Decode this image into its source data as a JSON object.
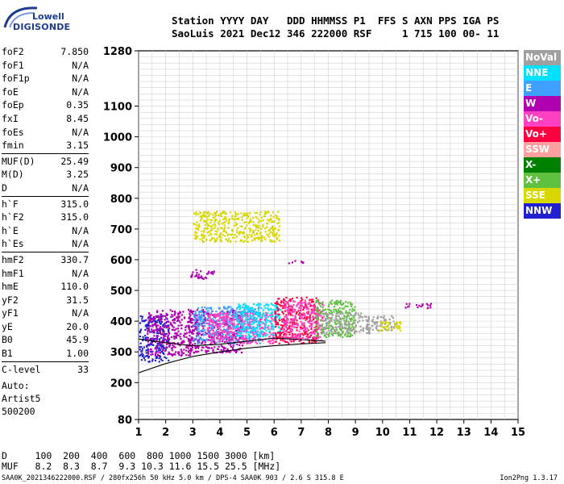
{
  "logo": {
    "top": "Lowell",
    "bottom": "DIGISONDE"
  },
  "header": {
    "line1": "Station YYYY DAY   DDD HHMMSS P1  FFS S AXN PPS IGA PS",
    "line2": "SaoLuis 2021 Dec12 346 222000 RSF     1 715 100 00- 11"
  },
  "params": [
    {
      "name": "foF2",
      "value": "7.850"
    },
    {
      "name": "foF1",
      "value": "N/A"
    },
    {
      "name": "foF1p",
      "value": "N/A"
    },
    {
      "name": "foE",
      "value": "N/A"
    },
    {
      "name": "foEp",
      "value": "0.35"
    },
    {
      "name": "fxI",
      "value": "8.45"
    },
    {
      "name": "foEs",
      "value": "N/A"
    },
    {
      "name": "fmin",
      "value": "3.15"
    },
    {
      "name": "MUF(D)",
      "value": "25.49"
    },
    {
      "name": "M(D)",
      "value": "3.25"
    },
    {
      "name": "D",
      "value": "N/A"
    },
    {
      "name": "h`F",
      "value": "315.0"
    },
    {
      "name": "h`F2",
      "value": "315.0"
    },
    {
      "name": "h`E",
      "value": "N/A"
    },
    {
      "name": "h`Es",
      "value": "N/A"
    },
    {
      "name": "hmF2",
      "value": "330.7"
    },
    {
      "name": "hmF1",
      "value": "N/A"
    },
    {
      "name": "hmE",
      "value": "110.0"
    },
    {
      "name": "yF2",
      "value": "31.5"
    },
    {
      "name": "yF1",
      "value": "N/A"
    },
    {
      "name": "yE",
      "value": "20.0"
    },
    {
      "name": "B0",
      "value": "45.9"
    },
    {
      "name": "B1",
      "value": "1.00"
    },
    {
      "name": "C-level",
      "value": "33"
    }
  ],
  "auto": {
    "line1": "Auto:",
    "line2": "Artist5",
    "line3": "500200"
  },
  "legend": [
    {
      "label": "NoVal",
      "color": "#a0a0a0"
    },
    {
      "label": "NNE",
      "color": "#00e0ff"
    },
    {
      "label": "E",
      "color": "#40a0ff"
    },
    {
      "label": "W",
      "color": "#b000b0"
    },
    {
      "label": "Vo-",
      "color": "#ff40c0"
    },
    {
      "label": "Vo+",
      "color": "#ff0040"
    },
    {
      "label": "SSW",
      "color": "#ffa0a0"
    },
    {
      "label": "X-",
      "color": "#008000"
    },
    {
      "label": "X+",
      "color": "#60c040"
    },
    {
      "label": "SSE",
      "color": "#d8d800"
    },
    {
      "label": "NNW",
      "color": "#2020d0"
    }
  ],
  "bottom": {
    "line1": "D     100  200  400  600  800 1000 1500 3000 [km]",
    "line2": "MUF   8.2  8.3  8.7  9.3 10.3 11.6 15.5 25.5 [MHz]"
  },
  "footer": {
    "left": "SAA0K_2021346222000.RSF / 280fx256h 50 kHz 5.0 km / DPS-4 SAA0K 903 / 2.6 S 315.8 E",
    "right": "Ion2Png 1.3.17"
  },
  "chart_data": {
    "type": "scatter",
    "x_ticks": [
      1,
      2,
      3,
      4,
      5,
      6,
      7,
      8,
      9,
      10,
      11,
      12,
      13,
      14,
      15
    ],
    "y_ticks": [
      80,
      200,
      300,
      400,
      500,
      600,
      700,
      800,
      900,
      1000,
      1100,
      1280
    ],
    "xlim": [
      1,
      15
    ],
    "ylim": [
      80,
      1280
    ],
    "grid": true,
    "legend_placement": "right",
    "traces": [
      {
        "name": "profile-upper",
        "x": [
          1.0,
          2.0,
          3.0,
          4.0,
          5.0,
          6.0,
          7.0,
          7.9
        ],
        "y": [
          342,
          330,
          320,
          325,
          335,
          345,
          340,
          335
        ]
      },
      {
        "name": "profile-lower",
        "x": [
          1.0,
          2.0,
          3.0,
          4.0,
          5.0,
          6.0,
          7.0,
          7.9
        ],
        "y": [
          232,
          262,
          285,
          300,
          312,
          320,
          326,
          330
        ]
      }
    ],
    "clusters": [
      {
        "x0": 1.0,
        "x1": 2.1,
        "y0": 270,
        "y1": 420,
        "color": "#2020d0"
      },
      {
        "x0": 1.3,
        "x1": 3.0,
        "y0": 290,
        "y1": 440,
        "color": "#b000b0"
      },
      {
        "x0": 2.8,
        "x1": 4.8,
        "y0": 300,
        "y1": 440,
        "color": "#b000b0"
      },
      {
        "x0": 3.0,
        "x1": 5.5,
        "y0": 330,
        "y1": 450,
        "color": "#40a0ff"
      },
      {
        "x0": 3.5,
        "x1": 6.0,
        "y0": 330,
        "y1": 430,
        "color": "#ff40c0"
      },
      {
        "x0": 4.5,
        "x1": 6.2,
        "y0": 350,
        "y1": 460,
        "color": "#00e0ff"
      },
      {
        "x0": 6.0,
        "x1": 7.6,
        "y0": 330,
        "y1": 480,
        "color": "#ff0040"
      },
      {
        "x0": 6.3,
        "x1": 7.8,
        "y0": 340,
        "y1": 470,
        "color": "#ff40c0"
      },
      {
        "x0": 7.5,
        "x1": 9.0,
        "y0": 350,
        "y1": 470,
        "color": "#60c040"
      },
      {
        "x0": 7.8,
        "x1": 9.5,
        "y0": 360,
        "y1": 430,
        "color": "#a0a0a0"
      },
      {
        "x0": 9.4,
        "x1": 10.5,
        "y0": 370,
        "y1": 420,
        "color": "#a0a0a0"
      },
      {
        "x0": 9.8,
        "x1": 10.7,
        "y0": 370,
        "y1": 400,
        "color": "#d8d800"
      },
      {
        "x0": 3.0,
        "x1": 6.2,
        "y0": 660,
        "y1": 760,
        "color": "#d8d800"
      },
      {
        "x0": 2.9,
        "x1": 3.8,
        "y0": 540,
        "y1": 570,
        "color": "#b000b0"
      },
      {
        "x0": 6.5,
        "x1": 7.1,
        "y0": 590,
        "y1": 600,
        "color": "#b000b0"
      },
      {
        "x0": 10.8,
        "x1": 11.8,
        "y0": 445,
        "y1": 460,
        "color": "#b000b0"
      }
    ]
  }
}
